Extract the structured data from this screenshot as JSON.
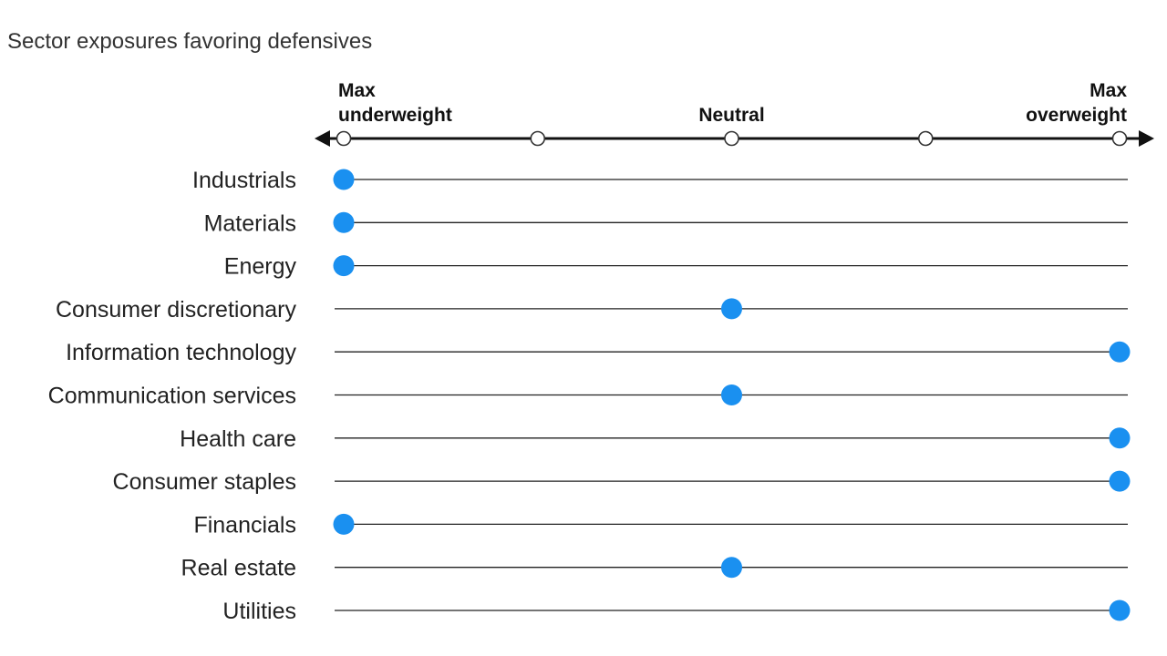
{
  "chart_data": {
    "type": "scatter",
    "title": "Sector exposures favoring defensives",
    "scale": {
      "min": -2,
      "max": 2,
      "ticks": [
        -2,
        -1,
        0,
        1,
        2
      ],
      "labels": [
        {
          "value": -2,
          "lines": [
            "Max",
            "underweight"
          ],
          "align": "start"
        },
        {
          "value": 0,
          "lines": [
            "Neutral"
          ],
          "align": "middle"
        },
        {
          "value": 2,
          "lines": [
            "Max",
            "overweight"
          ],
          "align": "end"
        }
      ]
    },
    "marker_color": "#1a90f0",
    "categories": [
      "Industrials",
      "Materials",
      "Energy",
      "Consumer discretionary",
      "Information technology",
      "Communication services",
      "Health care",
      "Consumer staples",
      "Financials",
      "Real estate",
      "Utilities"
    ],
    "values": [
      -2,
      -2,
      -2,
      0,
      2,
      0,
      2,
      2,
      -2,
      0,
      2
    ]
  }
}
